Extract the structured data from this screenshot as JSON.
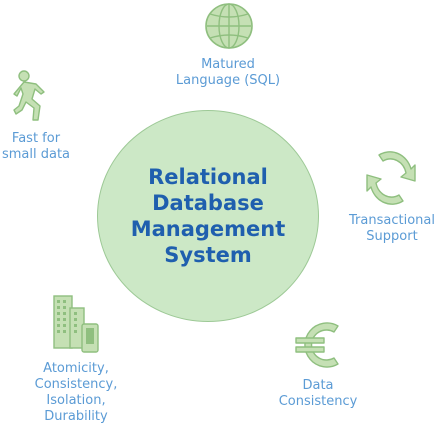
{
  "center": {
    "lines": [
      "Relational",
      "Database",
      "Management",
      "System"
    ]
  },
  "features": {
    "sql": [
      "Matured",
      "Language (SQL)"
    ],
    "fast": [
      "Fast for",
      "small data"
    ],
    "transactional": [
      "Transactional",
      "Support"
    ],
    "acid": [
      "Atomicity,",
      "Consistency,",
      "Isolation,",
      "Durability"
    ],
    "consistency": [
      "Data",
      "Consistency"
    ]
  },
  "colors": {
    "label": "#5b9bd5",
    "title": "#1f5fae",
    "circle": "#cce8c6",
    "icon_fill": "#c5e0b4",
    "icon_stroke": "#8fbf7f"
  },
  "icons": {
    "sql": "globe-icon",
    "fast": "running-person-icon",
    "transactional": "cycle-arrows-icon",
    "acid": "buildings-icon",
    "consistency": "euro-icon"
  }
}
